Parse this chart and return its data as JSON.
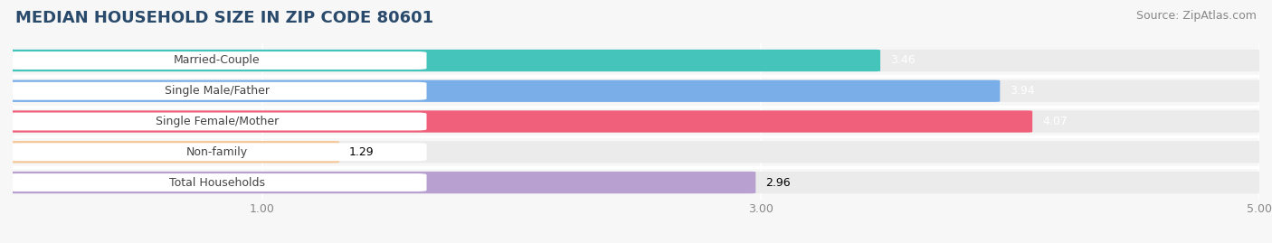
{
  "title": "MEDIAN HOUSEHOLD SIZE IN ZIP CODE 80601",
  "source": "Source: ZipAtlas.com",
  "categories": [
    "Married-Couple",
    "Single Male/Father",
    "Single Female/Mother",
    "Non-family",
    "Total Households"
  ],
  "values": [
    3.46,
    3.94,
    4.07,
    1.29,
    2.96
  ],
  "bar_colors": [
    "#45c4bc",
    "#7aaee8",
    "#f0607a",
    "#f5c899",
    "#b8a0d0"
  ],
  "value_label_colors": [
    "white",
    "white",
    "white",
    "black",
    "black"
  ],
  "xlim_min": 0,
  "xlim_max": 5.0,
  "xticks": [
    1.0,
    3.0,
    5.0
  ],
  "xtick_labels": [
    "1.00",
    "3.00",
    "5.00"
  ],
  "title_fontsize": 13,
  "title_color": "#2a4a6b",
  "source_fontsize": 9,
  "source_color": "#888888",
  "label_fontsize": 9,
  "value_fontsize": 9,
  "tick_fontsize": 9,
  "background_color": "#f7f7f7",
  "bar_background_color": "#ebebeb",
  "bar_height": 0.68,
  "pill_bg_color": "#ffffff",
  "pill_text_color": "#444444",
  "separator_color": "#ffffff"
}
